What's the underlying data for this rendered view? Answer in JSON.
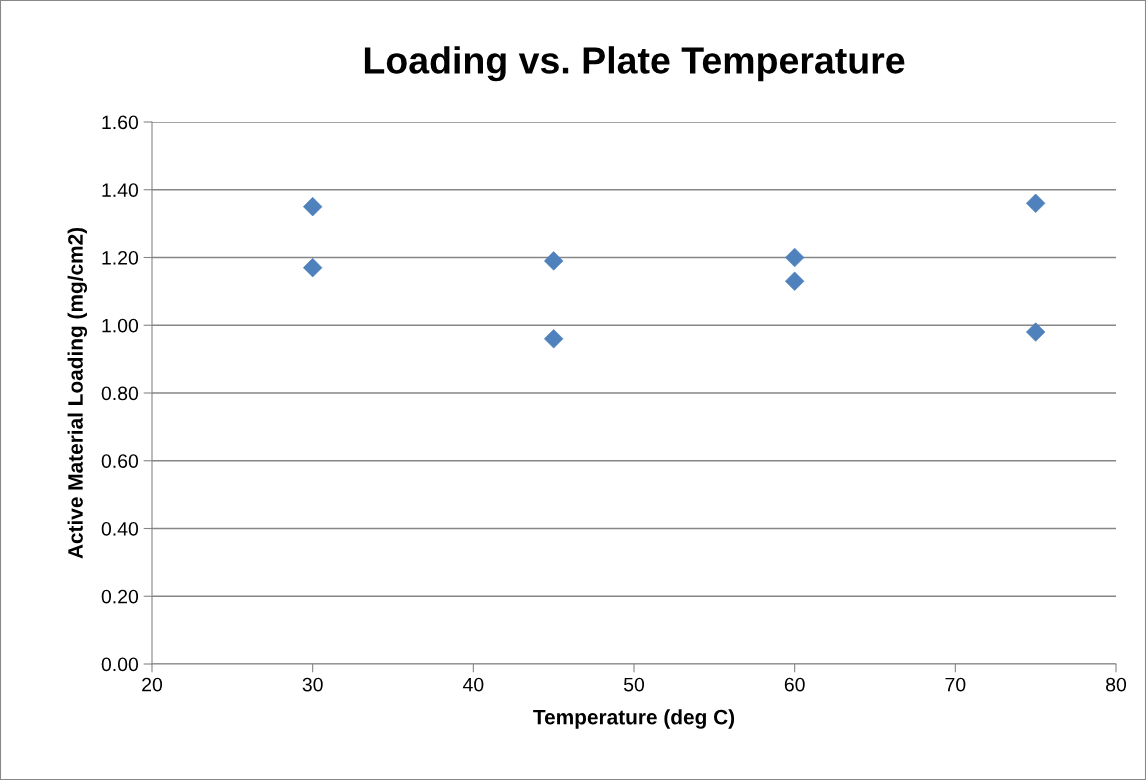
{
  "chart_data": {
    "type": "scatter",
    "title": "Loading vs. Plate Temperature",
    "xlabel": "Temperature (deg C)",
    "ylabel": "Active Material Loading (mg/cm2)",
    "x": [
      30,
      30,
      45,
      45,
      60,
      60,
      75,
      75
    ],
    "values": [
      1.35,
      1.17,
      1.19,
      0.96,
      1.2,
      1.13,
      1.36,
      0.98
    ],
    "color": "#4f81bd",
    "marker": "diamond",
    "grid": "y",
    "xlim": [
      20,
      80
    ],
    "xticks": [
      20,
      30,
      40,
      50,
      60,
      70,
      80
    ],
    "ylim": [
      0,
      1.6
    ],
    "yticks": [
      {
        "value": 0,
        "label": "0.00"
      },
      {
        "value": 0.2,
        "label": "0.20"
      },
      {
        "value": 0.4,
        "label": "0.40"
      },
      {
        "value": 0.6,
        "label": "0.60"
      },
      {
        "value": 0.8,
        "label": "0.80"
      },
      {
        "value": 1.0,
        "label": "1.00"
      },
      {
        "value": 1.2,
        "label": "1.20"
      },
      {
        "value": 1.4,
        "label": "1.40"
      },
      {
        "value": 1.6,
        "label": "1.60"
      }
    ]
  }
}
